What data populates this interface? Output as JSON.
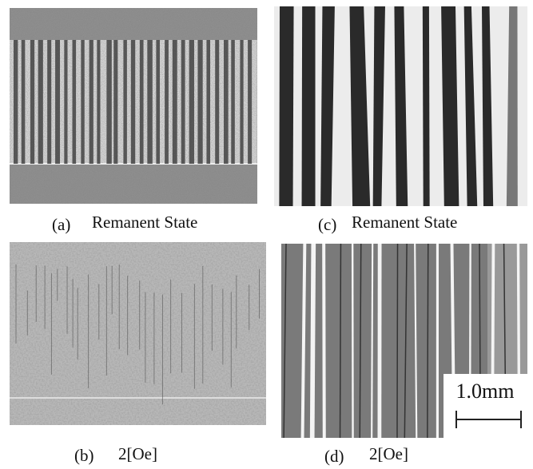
{
  "panels": [
    {
      "label": "(a)",
      "caption": "Remanent State"
    },
    {
      "label": "(c)",
      "caption": "Remanent State"
    },
    {
      "label": "(b)",
      "caption": "2[Oe]"
    },
    {
      "label": "(d)",
      "caption": "2[Oe]"
    }
  ],
  "scale_bar": {
    "label": "1.0mm"
  }
}
